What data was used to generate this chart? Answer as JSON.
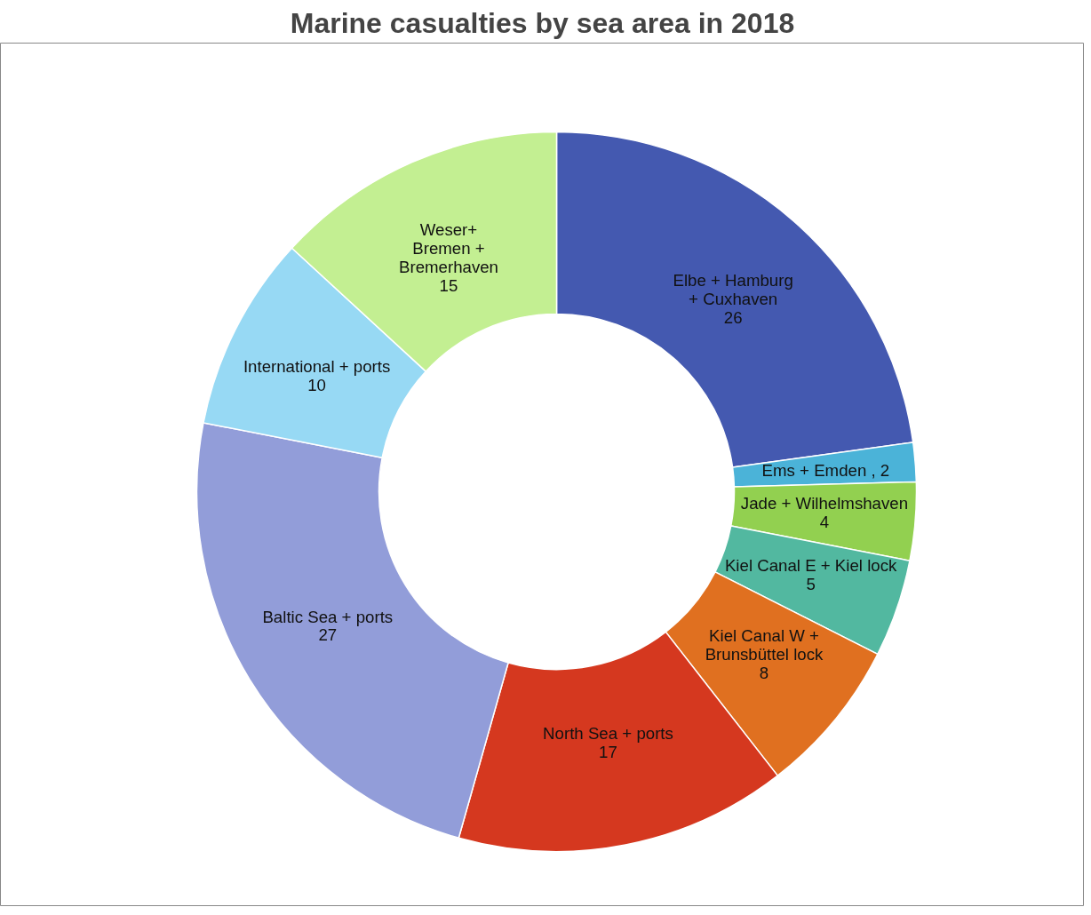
{
  "chart_data": {
    "type": "donut",
    "title": "Marine casualties by sea area in 2018",
    "categories": [
      "Elbe + Hamburg\n+ Cuxhaven",
      "Ems +  Emden",
      "Jade + Wilhelmshaven",
      "Kiel Canal E + Kiel lock",
      "Kiel Canal W +\nBrunsbüttel lock",
      "North Sea + ports",
      "Baltic Sea + ports",
      "International + ports",
      "Weser+\nBremen +\nBremerhaven"
    ],
    "values": [
      26,
      2,
      4,
      5,
      8,
      17,
      27,
      10,
      15
    ],
    "colors": [
      "#4459b0",
      "#4bb3d8",
      "#92d050",
      "#52b8a0",
      "#e07020",
      "#d5381f",
      "#929dd9",
      "#97d9f4",
      "#c3ef92"
    ],
    "value_labels": [
      "26",
      ", 2",
      "4",
      "5",
      "8",
      "17",
      "27",
      "10",
      "15"
    ]
  }
}
